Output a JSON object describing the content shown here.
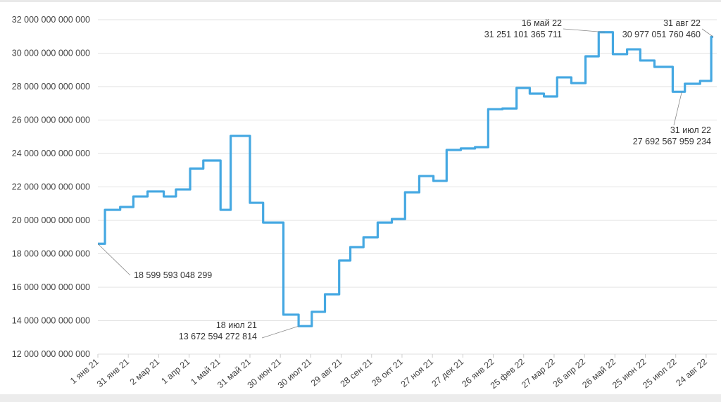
{
  "chart_data": {
    "type": "line",
    "step": true,
    "color": "#45a8e2",
    "grid": true,
    "ylim": [
      12000000000000,
      32000000000000
    ],
    "xlim": [
      "2021-01-01",
      "2022-08-31"
    ],
    "yticks": [
      12000000000000,
      14000000000000,
      16000000000000,
      18000000000000,
      20000000000000,
      22000000000000,
      24000000000000,
      26000000000000,
      28000000000000,
      30000000000000,
      32000000000000
    ],
    "ytick_labels": [
      "12 000 000 000 000",
      "14 000 000 000 000",
      "16 000 000 000 000",
      "18 000 000 000 000",
      "20 000 000 000 000",
      "22 000 000 000 000",
      "24 000 000 000 000",
      "26 000 000 000 000",
      "28 000 000 000 000",
      "30 000 000 000 000",
      "32 000 000 000 000"
    ],
    "xticks": [
      "2021-01-01",
      "2021-01-31",
      "2021-03-02",
      "2021-04-01",
      "2021-05-01",
      "2021-05-31",
      "2021-06-30",
      "2021-07-30",
      "2021-08-29",
      "2021-09-28",
      "2021-10-28",
      "2021-11-27",
      "2021-12-27",
      "2022-01-26",
      "2022-02-25",
      "2022-03-27",
      "2022-04-26",
      "2022-05-26",
      "2022-06-25",
      "2022-07-25",
      "2022-08-24"
    ],
    "xtick_labels": [
      "1 янв 21",
      "31 янв 21",
      "2 мар 21",
      "1 апр 21",
      "1 май 21",
      "31 май 21",
      "30 июн 21",
      "30 июл 21",
      "29 авг 21",
      "28 сен 21",
      "28 окт 21",
      "27 ноя 21",
      "27 дек 21",
      "26 янв 22",
      "25 фев 22",
      "27 мар 22",
      "26 апр 22",
      "26 май 22",
      "25 июн 22",
      "25 июл 22",
      "24 авг 22"
    ],
    "points": [
      [
        "2021-01-01",
        18599593048299
      ],
      [
        "2021-01-08",
        20630000000000
      ],
      [
        "2021-01-23",
        20800000000000
      ],
      [
        "2021-02-05",
        21430000000000
      ],
      [
        "2021-02-19",
        21730000000000
      ],
      [
        "2021-03-07",
        21430000000000
      ],
      [
        "2021-03-19",
        21850000000000
      ],
      [
        "2021-04-02",
        23100000000000
      ],
      [
        "2021-04-15",
        23580000000000
      ],
      [
        "2021-05-02",
        20630000000000
      ],
      [
        "2021-05-12",
        25050000000000
      ],
      [
        "2021-05-31",
        21050000000000
      ],
      [
        "2021-06-13",
        19870000000000
      ],
      [
        "2021-07-03",
        14360000000000
      ],
      [
        "2021-07-18",
        13672594272814
      ],
      [
        "2021-07-31",
        14530000000000
      ],
      [
        "2021-08-13",
        15580000000000
      ],
      [
        "2021-08-27",
        17600000000000
      ],
      [
        "2021-09-07",
        18400000000000
      ],
      [
        "2021-09-20",
        18990000000000
      ],
      [
        "2021-10-04",
        19870000000000
      ],
      [
        "2021-10-18",
        20080000000000
      ],
      [
        "2021-10-31",
        21680000000000
      ],
      [
        "2021-11-14",
        22650000000000
      ],
      [
        "2021-11-28",
        22360000000000
      ],
      [
        "2021-12-11",
        24210000000000
      ],
      [
        "2021-12-25",
        24300000000000
      ],
      [
        "2022-01-08",
        24380000000000
      ],
      [
        "2022-01-21",
        26650000000000
      ],
      [
        "2022-02-04",
        26690000000000
      ],
      [
        "2022-02-18",
        27920000000000
      ],
      [
        "2022-03-03",
        27580000000000
      ],
      [
        "2022-03-17",
        27410000000000
      ],
      [
        "2022-03-30",
        28550000000000
      ],
      [
        "2022-04-13",
        28210000000000
      ],
      [
        "2022-04-27",
        29810000000000
      ],
      [
        "2022-05-10",
        31251101365711
      ],
      [
        "2022-05-24",
        29940000000000
      ],
      [
        "2022-06-07",
        30230000000000
      ],
      [
        "2022-06-20",
        29560000000000
      ],
      [
        "2022-07-04",
        29180000000000
      ],
      [
        "2022-07-22",
        27692567959234
      ],
      [
        "2022-08-03",
        28170000000000
      ],
      [
        "2022-08-18",
        28340000000000
      ],
      [
        "2022-08-29",
        30977051760460
      ]
    ],
    "annotations": [
      {
        "date": "2021-01-01",
        "value": 18599593048299,
        "label": "",
        "value_label": "18 599 593 048 299"
      },
      {
        "date": "2021-07-18",
        "value": 13672594272814,
        "label": "18 июл 21",
        "value_label": "13 672 594 272 814"
      },
      {
        "date": "2022-05-16",
        "value": 31251101365711,
        "label": "16 май 22",
        "value_label": "31 251 101 365 711"
      },
      {
        "date": "2022-08-31",
        "value": 30977051760460,
        "label": "31 авг 22",
        "value_label": "30 977 051 760 460"
      },
      {
        "date": "2022-07-31",
        "value": 27692567959234,
        "label": "31 июл 22",
        "value_label": "27 692 567 959 234"
      }
    ]
  }
}
